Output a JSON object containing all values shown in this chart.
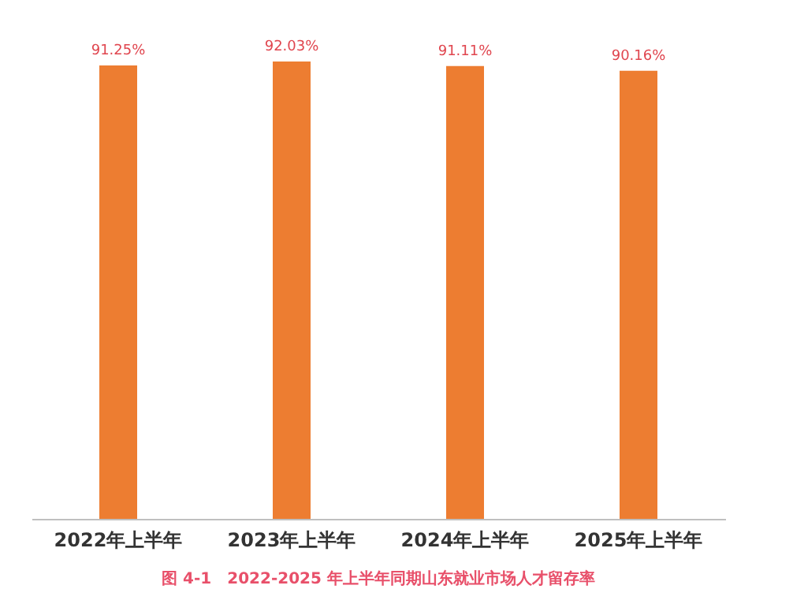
{
  "chart_data": {
    "type": "bar",
    "categories": [
      "2022年上半年",
      "2023年上半年",
      "2024年上半年",
      "2025年上半年"
    ],
    "values": [
      91.25,
      92.03,
      91.11,
      90.16
    ],
    "value_labels": [
      "91.25%",
      "92.03%",
      "91.11%",
      "90.16%"
    ],
    "color": "#ed7d31",
    "tick_labels": "x",
    "annotations": [
      "图 4-1　2022-2025 年上半年同期山东就业市场人才留存率"
    ]
  }
}
